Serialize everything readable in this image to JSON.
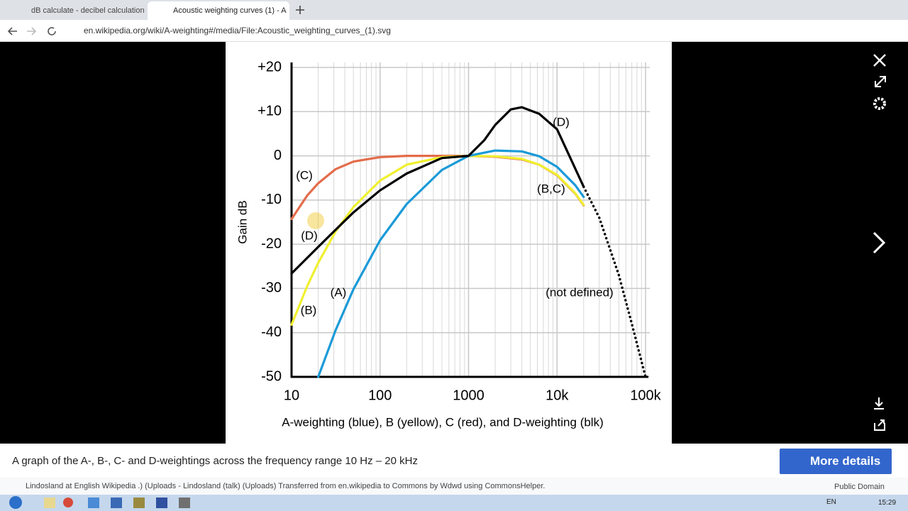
{
  "browser": {
    "tabs": [
      "dB calculate - decibel calculation",
      "Acoustic weighting curves (1) - A"
    ],
    "url": "en.wikipedia.org/wiki/A-weighting#/media/File:Acoustic_weighting_curves_(1).svg"
  },
  "viewer": {
    "caption": "A graph of the A-, B-, C- and D-weightings across the frequency range 10 Hz – 20 kHz",
    "more_details": "More details",
    "attribution": "Lindosland at English Wikipedia .) (Uploads - Lindosland (talk) (Uploads) Transferred from en.wikipedia to Commons by Wdwd using CommonsHelper.",
    "license": "Public Domain"
  },
  "taskbar": {
    "lang": "EN",
    "time": "15:29"
  },
  "chart_data": {
    "type": "line",
    "x_label": "A-weighting (blue), B (yellow), C (red), and D-weighting (blk)",
    "y_label": "Gain dB",
    "log_x": true,
    "grid": true,
    "xlim": [
      10,
      100000
    ],
    "ylim": [
      -50,
      20
    ],
    "xticks": [
      10,
      100,
      1000,
      {
        "value": 10000,
        "label": "10k"
      },
      {
        "value": 100000,
        "label": "100k"
      }
    ],
    "yticks": [
      {
        "value": 20,
        "label": "+20"
      },
      {
        "value": 10,
        "label": "+10"
      },
      0,
      -10,
      -20,
      -30,
      -40,
      -50
    ],
    "series": [
      {
        "color": "#e36c4a",
        "x": [
          10,
          15,
          20,
          31.5,
          50,
          100,
          200,
          500,
          1000,
          2000,
          4000,
          6300,
          10000,
          16000,
          20000
        ],
        "values": [
          -14.3,
          -9,
          -6.2,
          -3,
          -1.3,
          -0.3,
          0,
          0,
          0,
          -0.2,
          -0.8,
          -2,
          -4.4,
          -8.5,
          -11.2
        ]
      },
      {
        "color": "#f0f030",
        "x": [
          10,
          15,
          20,
          31.5,
          50,
          100,
          200,
          500,
          1000,
          2000,
          4000,
          6300,
          10000,
          16000,
          20000
        ],
        "values": [
          -38.2,
          -29.5,
          -24.2,
          -17.1,
          -11.6,
          -5.6,
          -2,
          -0.3,
          0,
          -0.1,
          -0.7,
          -2,
          -4.3,
          -8.4,
          -11.1
        ]
      },
      {
        "color": "#1a9ad8",
        "x": [
          20,
          31.5,
          50,
          100,
          200,
          500,
          1000,
          2000,
          4000,
          6300,
          10000,
          16000,
          20000
        ],
        "values": [
          -50,
          -39.4,
          -30.2,
          -19.1,
          -10.9,
          -3.2,
          0,
          1.2,
          1,
          -0.1,
          -2.5,
          -6.6,
          -9.3
        ]
      },
      {
        "color": "#000000",
        "x": [
          10,
          20,
          31.5,
          50,
          100,
          200,
          500,
          1000,
          1500,
          2000,
          3000,
          4000,
          6300,
          10000,
          20000
        ],
        "values": [
          -26.6,
          -20.6,
          -16.7,
          -12.8,
          -7.8,
          -4,
          -0.5,
          0,
          3.5,
          7,
          10.5,
          11,
          9.5,
          6,
          -7
        ]
      },
      {
        "color": "#000000",
        "dash": "dotted",
        "x": [
          20000,
          30000,
          50000,
          70000,
          100000
        ],
        "values": [
          -7,
          -14,
          -27,
          -38,
          -50
        ]
      }
    ],
    "annotations": [
      "(C)",
      "(D)",
      "(B)",
      "(A)",
      "(D)",
      "(B,C)",
      "(not defined)"
    ]
  }
}
